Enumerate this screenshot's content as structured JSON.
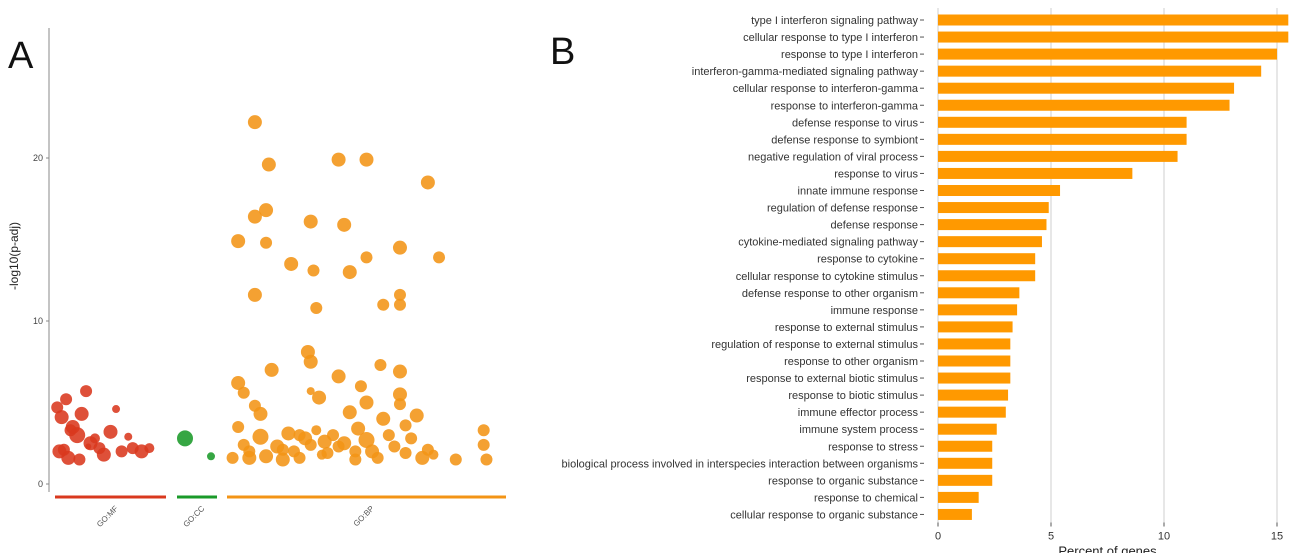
{
  "panels": {
    "a": "A",
    "b": "B"
  },
  "chart_data": [
    {
      "type": "scatter",
      "panel": "A",
      "ylabel": "-log10(p-adj)",
      "ylim": [
        0,
        27
      ],
      "yticks": [
        0,
        10,
        20
      ],
      "grid": false,
      "groups": [
        {
          "name": "GO:MF",
          "color": "#d9381e"
        },
        {
          "name": "GO:CC",
          "color": "#1a9a29"
        },
        {
          "name": "GO:BP",
          "color": "#f39416"
        }
      ],
      "points": {
        "GO:MF": [
          [
            0.02,
            4.7,
            6
          ],
          [
            0.06,
            4.1,
            7
          ],
          [
            0.1,
            5.2,
            6
          ],
          [
            0.04,
            2.0,
            7
          ],
          [
            0.08,
            2.1,
            6
          ],
          [
            0.12,
            1.6,
            7
          ],
          [
            0.16,
            3.5,
            7
          ],
          [
            0.2,
            3.0,
            8
          ],
          [
            0.24,
            4.3,
            7
          ],
          [
            0.28,
            5.7,
            6
          ],
          [
            0.32,
            2.5,
            7
          ],
          [
            0.36,
            2.8,
            5
          ],
          [
            0.4,
            2.2,
            6
          ],
          [
            0.44,
            1.8,
            7
          ],
          [
            0.5,
            3.2,
            7
          ],
          [
            0.55,
            4.6,
            4
          ],
          [
            0.6,
            2.0,
            6
          ],
          [
            0.66,
            2.9,
            4
          ],
          [
            0.7,
            2.2,
            6
          ],
          [
            0.78,
            2.0,
            7
          ],
          [
            0.85,
            2.2,
            5
          ],
          [
            0.3,
            2.3,
            3
          ],
          [
            0.14,
            3.3,
            6
          ],
          [
            0.22,
            1.5,
            6
          ]
        ],
        "GO:CC": [
          [
            0.2,
            2.8,
            8
          ],
          [
            0.85,
            1.7,
            4
          ]
        ],
        "GO:BP": [
          [
            0.1,
            22.2,
            7
          ],
          [
            0.15,
            19.6,
            7
          ],
          [
            0.1,
            16.4,
            7
          ],
          [
            0.14,
            16.8,
            7
          ],
          [
            0.04,
            14.9,
            7
          ],
          [
            0.14,
            14.8,
            6
          ],
          [
            0.23,
            13.5,
            7
          ],
          [
            0.1,
            11.6,
            7
          ],
          [
            0.3,
            16.1,
            7
          ],
          [
            0.31,
            13.1,
            6
          ],
          [
            0.32,
            10.8,
            6
          ],
          [
            0.4,
            19.9,
            7
          ],
          [
            0.42,
            15.9,
            7
          ],
          [
            0.44,
            13.0,
            7
          ],
          [
            0.5,
            19.9,
            7
          ],
          [
            0.5,
            13.9,
            6
          ],
          [
            0.56,
            11.0,
            6
          ],
          [
            0.62,
            14.5,
            7
          ],
          [
            0.62,
            11.6,
            6
          ],
          [
            0.62,
            11.0,
            6
          ],
          [
            0.72,
            18.5,
            7
          ],
          [
            0.76,
            13.9,
            6
          ],
          [
            0.04,
            6.2,
            7
          ],
          [
            0.06,
            5.6,
            6
          ],
          [
            0.1,
            4.8,
            6
          ],
          [
            0.12,
            4.3,
            7
          ],
          [
            0.16,
            7.0,
            7
          ],
          [
            0.04,
            3.5,
            6
          ],
          [
            0.06,
            2.4,
            6
          ],
          [
            0.08,
            1.6,
            7
          ],
          [
            0.12,
            2.9,
            8
          ],
          [
            0.14,
            1.7,
            7
          ],
          [
            0.18,
            2.3,
            7
          ],
          [
            0.2,
            1.5,
            7
          ],
          [
            0.22,
            3.1,
            7
          ],
          [
            0.24,
            2.0,
            6
          ],
          [
            0.26,
            1.6,
            6
          ],
          [
            0.28,
            2.8,
            7
          ],
          [
            0.3,
            2.4,
            6
          ],
          [
            0.32,
            3.3,
            5
          ],
          [
            0.3,
            7.5,
            7
          ],
          [
            0.29,
            8.1,
            7
          ],
          [
            0.3,
            5.7,
            4
          ],
          [
            0.33,
            5.3,
            7
          ],
          [
            0.35,
            2.6,
            7
          ],
          [
            0.36,
            1.9,
            6
          ],
          [
            0.38,
            3.0,
            6
          ],
          [
            0.4,
            6.6,
            7
          ],
          [
            0.4,
            2.3,
            6
          ],
          [
            0.42,
            2.5,
            7
          ],
          [
            0.44,
            4.4,
            7
          ],
          [
            0.46,
            2.0,
            6
          ],
          [
            0.47,
            3.4,
            7
          ],
          [
            0.48,
            6.0,
            6
          ],
          [
            0.5,
            5.0,
            7
          ],
          [
            0.5,
            2.7,
            8
          ],
          [
            0.52,
            2.0,
            7
          ],
          [
            0.54,
            1.6,
            6
          ],
          [
            0.55,
            7.3,
            6
          ],
          [
            0.56,
            4.0,
            7
          ],
          [
            0.58,
            3.0,
            6
          ],
          [
            0.6,
            2.3,
            6
          ],
          [
            0.62,
            5.5,
            7
          ],
          [
            0.62,
            4.9,
            6
          ],
          [
            0.64,
            3.6,
            6
          ],
          [
            0.64,
            1.9,
            6
          ],
          [
            0.62,
            6.9,
            7
          ],
          [
            0.66,
            2.8,
            6
          ],
          [
            0.68,
            4.2,
            7
          ],
          [
            0.7,
            1.6,
            7
          ],
          [
            0.72,
            2.1,
            6
          ],
          [
            0.74,
            1.8,
            5
          ],
          [
            0.82,
            1.5,
            6
          ],
          [
            0.92,
            3.3,
            6
          ],
          [
            0.92,
            2.4,
            6
          ],
          [
            0.93,
            1.5,
            6
          ],
          [
            0.2,
            2.1,
            6
          ],
          [
            0.02,
            1.6,
            6
          ],
          [
            0.08,
            2.0,
            6
          ],
          [
            0.34,
            1.8,
            5
          ],
          [
            0.46,
            1.5,
            6
          ],
          [
            0.26,
            3.0,
            6
          ]
        ]
      }
    },
    {
      "type": "bar",
      "panel": "B",
      "orientation": "horizontal",
      "xlabel": "Percent of genes",
      "xlim": [
        0,
        15.5
      ],
      "xticks": [
        0,
        5,
        10,
        15
      ],
      "grid": true,
      "bar_color": "#ff9900",
      "categories": [
        "type I interferon signaling pathway",
        "cellular response to type I interferon",
        "response to type I interferon",
        "interferon-gamma-mediated signaling pathway",
        "cellular response to interferon-gamma",
        "response to interferon-gamma",
        "defense response to virus",
        "defense response to symbiont",
        "negative regulation of viral process",
        "response to virus",
        "innate immune response",
        "regulation of defense response",
        "defense response",
        "cytokine-mediated signaling pathway",
        "response to cytokine",
        "cellular response to cytokine stimulus",
        "defense response to other organism",
        "immune response",
        "response to external stimulus",
        "regulation of response to external stimulus",
        "response to other organism",
        "response to external biotic stimulus",
        "response to biotic stimulus",
        "immune effector process",
        "immune system process",
        "response to stress",
        "biological process involved in interspecies interaction between organisms",
        "response to organic substance",
        "response to chemical",
        "cellular response to organic substance"
      ],
      "values": [
        15.5,
        15.5,
        15.0,
        14.3,
        13.1,
        12.9,
        11.0,
        11.0,
        10.6,
        8.6,
        5.4,
        4.9,
        4.8,
        4.6,
        4.3,
        4.3,
        3.6,
        3.5,
        3.3,
        3.2,
        3.2,
        3.2,
        3.1,
        3.0,
        2.6,
        2.4,
        2.4,
        2.4,
        1.8,
        1.5
      ]
    }
  ]
}
